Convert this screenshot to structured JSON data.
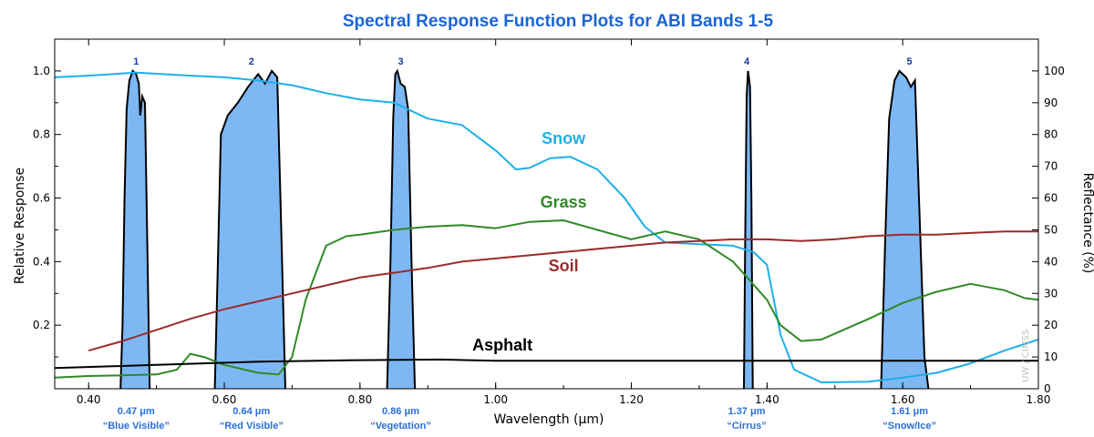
{
  "chart_data": {
    "type": "line",
    "title": "Spectral Response Function Plots for ABI Bands 1-5",
    "xlabel": "Wavelength (μm)",
    "ylabel": "Relative Response",
    "y2label": "Reflectance (%)",
    "xlim": [
      0.35,
      1.8
    ],
    "ylim": [
      0,
      1.1
    ],
    "y2lim": [
      0,
      110
    ],
    "x_ticks": [
      "0.40",
      "0.60",
      "0.80",
      "1.00",
      "1.20",
      "1.40",
      "1.60",
      "1.80"
    ],
    "y_ticks": [
      "0.2",
      "0.4",
      "0.6",
      "0.8",
      "1.0"
    ],
    "y2_ticks": [
      "0",
      "10",
      "20",
      "30",
      "40",
      "50",
      "60",
      "70",
      "80",
      "90",
      "100"
    ],
    "grid": false,
    "watermark": "UW / CIMSS",
    "bands": [
      {
        "number": "1",
        "center": 0.47,
        "wavelength": "0.47 μm",
        "name": "“Blue Visible”",
        "response": [
          [
            0.447,
            0
          ],
          [
            0.45,
            0.2
          ],
          [
            0.453,
            0.6
          ],
          [
            0.456,
            0.88
          ],
          [
            0.46,
            0.97
          ],
          [
            0.465,
            1.0
          ],
          [
            0.47,
            0.99
          ],
          [
            0.474,
            0.96
          ],
          [
            0.476,
            0.86
          ],
          [
            0.479,
            0.92
          ],
          [
            0.483,
            0.9
          ],
          [
            0.487,
            0.4
          ],
          [
            0.49,
            0
          ]
        ]
      },
      {
        "number": "2",
        "center": 0.64,
        "wavelength": "0.64 μm",
        "name": "“Red Visible”",
        "response": [
          [
            0.586,
            0
          ],
          [
            0.59,
            0.35
          ],
          [
            0.595,
            0.8
          ],
          [
            0.605,
            0.86
          ],
          [
            0.62,
            0.9
          ],
          [
            0.635,
            0.95
          ],
          [
            0.65,
            0.99
          ],
          [
            0.66,
            0.96
          ],
          [
            0.67,
            1.0
          ],
          [
            0.678,
            0.98
          ],
          [
            0.684,
            0.5
          ],
          [
            0.69,
            0
          ]
        ]
      },
      {
        "number": "3",
        "center": 0.86,
        "wavelength": "0.86 μm",
        "name": "“Vegetation”",
        "response": [
          [
            0.84,
            0
          ],
          [
            0.845,
            0.4
          ],
          [
            0.849,
            0.85
          ],
          [
            0.852,
            0.99
          ],
          [
            0.855,
            1.0
          ],
          [
            0.86,
            0.96
          ],
          [
            0.866,
            0.95
          ],
          [
            0.871,
            0.88
          ],
          [
            0.876,
            0.4
          ],
          [
            0.881,
            0
          ]
        ]
      },
      {
        "number": "4",
        "center": 1.37,
        "wavelength": "1.37 μm",
        "name": "“Cirrus”",
        "response": [
          [
            1.366,
            0
          ],
          [
            1.368,
            0.5
          ],
          [
            1.37,
            0.92
          ],
          [
            1.372,
            1.0
          ],
          [
            1.375,
            0.95
          ],
          [
            1.377,
            0.6
          ],
          [
            1.379,
            0
          ]
        ]
      },
      {
        "number": "5",
        "center": 1.61,
        "wavelength": "1.61 μm",
        "name": "“Snow/Ice”",
        "response": [
          [
            1.568,
            0
          ],
          [
            1.574,
            0.45
          ],
          [
            1.58,
            0.85
          ],
          [
            1.588,
            0.97
          ],
          [
            1.595,
            1.0
          ],
          [
            1.605,
            0.98
          ],
          [
            1.612,
            0.95
          ],
          [
            1.618,
            0.97
          ],
          [
            1.624,
            0.6
          ],
          [
            1.632,
            0.1
          ],
          [
            1.638,
            0
          ]
        ]
      }
    ],
    "series": [
      {
        "name": "Snow",
        "color": "#1db0e6",
        "axis": "reflectance",
        "points": [
          [
            0.35,
            98
          ],
          [
            0.4,
            98.5
          ],
          [
            0.47,
            99.5
          ],
          [
            0.55,
            98.5
          ],
          [
            0.6,
            98
          ],
          [
            0.65,
            97
          ],
          [
            0.7,
            95.5
          ],
          [
            0.75,
            93
          ],
          [
            0.8,
            91
          ],
          [
            0.85,
            90
          ],
          [
            0.9,
            85
          ],
          [
            0.95,
            83
          ],
          [
            1.0,
            75
          ],
          [
            1.03,
            69
          ],
          [
            1.05,
            69.5
          ],
          [
            1.08,
            72.5
          ],
          [
            1.11,
            73
          ],
          [
            1.15,
            69
          ],
          [
            1.19,
            60
          ],
          [
            1.22,
            51
          ],
          [
            1.25,
            46
          ],
          [
            1.3,
            45.5
          ],
          [
            1.35,
            45
          ],
          [
            1.38,
            43
          ],
          [
            1.4,
            39
          ],
          [
            1.42,
            17
          ],
          [
            1.44,
            6
          ],
          [
            1.48,
            2
          ],
          [
            1.55,
            2.2
          ],
          [
            1.6,
            3.5
          ],
          [
            1.65,
            5
          ],
          [
            1.7,
            8
          ],
          [
            1.75,
            12
          ],
          [
            1.8,
            15.5
          ]
        ]
      },
      {
        "name": "Grass",
        "color": "#2f8a25",
        "axis": "reflectance",
        "points": [
          [
            0.35,
            3.5
          ],
          [
            0.4,
            4
          ],
          [
            0.45,
            4.2
          ],
          [
            0.5,
            4.5
          ],
          [
            0.53,
            6
          ],
          [
            0.55,
            11
          ],
          [
            0.57,
            10
          ],
          [
            0.6,
            7.5
          ],
          [
            0.65,
            5
          ],
          [
            0.68,
            4.5
          ],
          [
            0.7,
            10
          ],
          [
            0.72,
            28
          ],
          [
            0.75,
            45
          ],
          [
            0.78,
            48
          ],
          [
            0.8,
            48.5
          ],
          [
            0.85,
            50
          ],
          [
            0.9,
            51
          ],
          [
            0.95,
            51.5
          ],
          [
            1.0,
            50.5
          ],
          [
            1.05,
            52.5
          ],
          [
            1.1,
            53
          ],
          [
            1.15,
            50
          ],
          [
            1.2,
            47
          ],
          [
            1.25,
            49.5
          ],
          [
            1.3,
            47
          ],
          [
            1.35,
            40
          ],
          [
            1.4,
            28
          ],
          [
            1.42,
            20
          ],
          [
            1.45,
            15
          ],
          [
            1.48,
            15.5
          ],
          [
            1.55,
            22
          ],
          [
            1.6,
            27
          ],
          [
            1.65,
            30.5
          ],
          [
            1.7,
            33
          ],
          [
            1.75,
            31
          ],
          [
            1.78,
            28.5
          ],
          [
            1.8,
            28
          ]
        ]
      },
      {
        "name": "Soil",
        "color": "#9a2b2b",
        "axis": "reflectance",
        "points": [
          [
            0.4,
            12
          ],
          [
            0.45,
            15
          ],
          [
            0.5,
            18.5
          ],
          [
            0.55,
            22
          ],
          [
            0.6,
            25
          ],
          [
            0.65,
            27.5
          ],
          [
            0.7,
            30
          ],
          [
            0.75,
            32.5
          ],
          [
            0.8,
            35
          ],
          [
            0.85,
            36.5
          ],
          [
            0.9,
            38
          ],
          [
            0.95,
            40
          ],
          [
            1.0,
            41
          ],
          [
            1.05,
            42
          ],
          [
            1.1,
            43
          ],
          [
            1.15,
            44
          ],
          [
            1.2,
            45
          ],
          [
            1.25,
            46
          ],
          [
            1.3,
            46.5
          ],
          [
            1.35,
            47
          ],
          [
            1.4,
            47
          ],
          [
            1.45,
            46.5
          ],
          [
            1.5,
            47
          ],
          [
            1.55,
            48
          ],
          [
            1.6,
            48.5
          ],
          [
            1.65,
            48.5
          ],
          [
            1.7,
            49
          ],
          [
            1.75,
            49.5
          ],
          [
            1.8,
            49.5
          ]
        ]
      },
      {
        "name": "Asphalt",
        "color": "#000000",
        "axis": "reflectance",
        "points": [
          [
            0.35,
            6.5
          ],
          [
            0.5,
            7.5
          ],
          [
            0.65,
            8.5
          ],
          [
            0.8,
            9
          ],
          [
            0.92,
            9.2
          ],
          [
            1.0,
            8.8
          ],
          [
            1.2,
            8.8
          ],
          [
            1.4,
            8.8
          ],
          [
            1.6,
            8.8
          ],
          [
            1.8,
            8.8
          ]
        ]
      }
    ],
    "series_labels": [
      {
        "name": "Snow",
        "x": 1.1,
        "y2": 77
      },
      {
        "name": "Grass",
        "x": 1.1,
        "y2": 57
      },
      {
        "name": "Soil",
        "x": 1.1,
        "y2": 37
      },
      {
        "name": "Asphalt",
        "x": 1.01,
        "y2": 12
      }
    ]
  }
}
